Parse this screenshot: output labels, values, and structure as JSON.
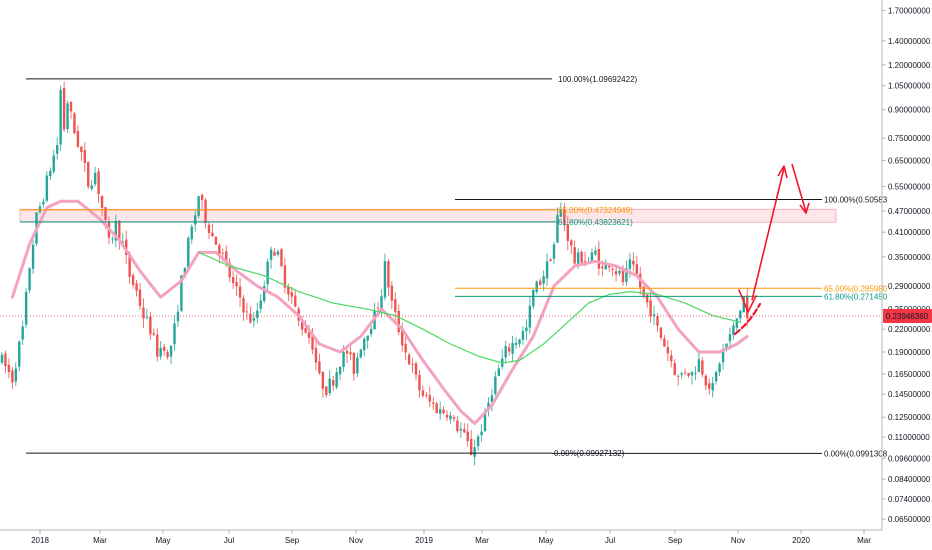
{
  "chart_data": {
    "type": "candlestick",
    "y_scale": "log",
    "ylim": [
      0.0606,
      1.82
    ],
    "y_ticks": [
      "1.70000000",
      "1.40000000",
      "1.20000000",
      "1.05000000",
      "0.90000000",
      "0.75000000",
      "0.65000000",
      "0.55000000",
      "0.47000000",
      "0.41000000",
      "0.35000000",
      "0.29000000",
      "0.25000000",
      "0.22000000",
      "0.19000000",
      "0.16500000",
      "0.14500000",
      "0.12500000",
      "0.11000000",
      "0.09600000",
      "0.08400000",
      "0.07400000",
      "0.06500000"
    ],
    "x_ticks": [
      "2018",
      "Mar",
      "May",
      "Jul",
      "Sep",
      "Nov",
      "2019",
      "Mar",
      "May",
      "Jul",
      "Sep",
      "Nov",
      "2020",
      "Mar"
    ],
    "current_price": {
      "value": 0.2394,
      "label": "0.23946360",
      "color": "#f23645"
    },
    "price_path": [
      [
        0,
        0.18
      ],
      [
        3,
        0.16
      ],
      [
        6,
        0.22
      ],
      [
        8,
        0.33
      ],
      [
        10,
        0.45
      ],
      [
        12,
        0.52
      ],
      [
        14,
        0.62
      ],
      [
        16,
        0.72
      ],
      [
        17,
        1.02
      ],
      [
        18,
        0.8
      ],
      [
        19,
        0.95
      ],
      [
        21,
        0.78
      ],
      [
        23,
        0.68
      ],
      [
        25,
        0.56
      ],
      [
        27,
        0.6
      ],
      [
        29,
        0.48
      ],
      [
        31,
        0.38
      ],
      [
        33,
        0.43
      ],
      [
        35,
        0.38
      ],
      [
        37,
        0.31
      ],
      [
        39,
        0.28
      ],
      [
        41,
        0.24
      ],
      [
        43,
        0.22
      ],
      [
        45,
        0.19
      ],
      [
        47,
        0.2
      ],
      [
        48,
        0.18
      ],
      [
        50,
        0.22
      ],
      [
        52,
        0.3
      ],
      [
        54,
        0.38
      ],
      [
        56,
        0.46
      ],
      [
        57,
        0.52
      ],
      [
        59,
        0.45
      ],
      [
        61,
        0.4
      ],
      [
        63,
        0.37
      ],
      [
        65,
        0.33
      ],
      [
        67,
        0.29
      ],
      [
        69,
        0.27
      ],
      [
        71,
        0.24
      ],
      [
        73,
        0.23
      ],
      [
        75,
        0.27
      ],
      [
        77,
        0.33
      ],
      [
        78,
        0.38
      ],
      [
        80,
        0.35
      ],
      [
        82,
        0.3
      ],
      [
        84,
        0.27
      ],
      [
        86,
        0.23
      ],
      [
        88,
        0.22
      ],
      [
        90,
        0.2
      ],
      [
        92,
        0.16
      ],
      [
        94,
        0.15
      ],
      [
        96,
        0.16
      ],
      [
        98,
        0.18
      ],
      [
        100,
        0.19
      ],
      [
        102,
        0.17
      ],
      [
        104,
        0.2
      ],
      [
        106,
        0.22
      ],
      [
        108,
        0.24
      ],
      [
        110,
        0.28
      ],
      [
        111,
        0.33
      ],
      [
        113,
        0.26
      ],
      [
        115,
        0.22
      ],
      [
        117,
        0.19
      ],
      [
        119,
        0.17
      ],
      [
        121,
        0.15
      ],
      [
        123,
        0.14
      ],
      [
        125,
        0.135
      ],
      [
        127,
        0.13
      ],
      [
        129,
        0.13
      ],
      [
        131,
        0.12
      ],
      [
        133,
        0.115
      ],
      [
        135,
        0.105
      ],
      [
        136,
        0.1
      ],
      [
        138,
        0.11
      ],
      [
        140,
        0.125
      ],
      [
        142,
        0.15
      ],
      [
        144,
        0.17
      ],
      [
        146,
        0.19
      ],
      [
        148,
        0.2
      ],
      [
        150,
        0.21
      ],
      [
        152,
        0.22
      ],
      [
        154,
        0.28
      ],
      [
        156,
        0.3
      ],
      [
        158,
        0.33
      ],
      [
        160,
        0.38
      ],
      [
        161,
        0.45
      ],
      [
        162,
        0.47
      ],
      [
        164,
        0.4
      ],
      [
        166,
        0.34
      ],
      [
        168,
        0.35
      ],
      [
        170,
        0.34
      ],
      [
        172,
        0.36
      ],
      [
        174,
        0.32
      ],
      [
        176,
        0.34
      ],
      [
        178,
        0.32
      ],
      [
        180,
        0.3
      ],
      [
        182,
        0.33
      ],
      [
        184,
        0.31
      ],
      [
        186,
        0.27
      ],
      [
        188,
        0.25
      ],
      [
        190,
        0.22
      ],
      [
        192,
        0.2
      ],
      [
        194,
        0.18
      ],
      [
        196,
        0.16
      ],
      [
        198,
        0.17
      ],
      [
        200,
        0.165
      ],
      [
        202,
        0.18
      ],
      [
        204,
        0.16
      ],
      [
        206,
        0.15
      ],
      [
        208,
        0.18
      ],
      [
        210,
        0.2
      ],
      [
        212,
        0.22
      ],
      [
        214,
        0.25
      ],
      [
        215,
        0.27
      ],
      [
        216,
        0.235
      ]
    ],
    "ema_pink": [
      [
        3,
        0.27
      ],
      [
        8,
        0.38
      ],
      [
        13,
        0.48
      ],
      [
        17,
        0.5
      ],
      [
        22,
        0.5
      ],
      [
        28,
        0.45
      ],
      [
        34,
        0.39
      ],
      [
        40,
        0.32
      ],
      [
        46,
        0.27
      ],
      [
        52,
        0.3
      ],
      [
        57,
        0.36
      ],
      [
        62,
        0.36
      ],
      [
        68,
        0.32
      ],
      [
        74,
        0.29
      ],
      [
        80,
        0.27
      ],
      [
        86,
        0.24
      ],
      [
        92,
        0.2
      ],
      [
        98,
        0.19
      ],
      [
        104,
        0.21
      ],
      [
        110,
        0.25
      ],
      [
        116,
        0.22
      ],
      [
        122,
        0.18
      ],
      [
        128,
        0.15
      ],
      [
        133,
        0.13
      ],
      [
        137,
        0.12
      ],
      [
        142,
        0.135
      ],
      [
        148,
        0.17
      ],
      [
        154,
        0.21
      ],
      [
        160,
        0.29
      ],
      [
        166,
        0.33
      ],
      [
        172,
        0.34
      ],
      [
        178,
        0.33
      ],
      [
        184,
        0.31
      ],
      [
        190,
        0.27
      ],
      [
        196,
        0.22
      ],
      [
        202,
        0.19
      ],
      [
        208,
        0.19
      ],
      [
        213,
        0.2
      ],
      [
        216,
        0.21
      ]
    ],
    "sma_green": [
      [
        57,
        0.36
      ],
      [
        66,
        0.33
      ],
      [
        76,
        0.31
      ],
      [
        86,
        0.28
      ],
      [
        96,
        0.26
      ],
      [
        106,
        0.25
      ],
      [
        114,
        0.24
      ],
      [
        122,
        0.22
      ],
      [
        130,
        0.2
      ],
      [
        138,
        0.185
      ],
      [
        145,
        0.177
      ],
      [
        150,
        0.18
      ],
      [
        157,
        0.2
      ],
      [
        164,
        0.23
      ],
      [
        170,
        0.26
      ],
      [
        176,
        0.275
      ],
      [
        182,
        0.28
      ],
      [
        190,
        0.275
      ],
      [
        198,
        0.26
      ],
      [
        206,
        0.24
      ],
      [
        214,
        0.23
      ]
    ],
    "fib_levels_1": [
      {
        "label": "100.00%(1.09692422)",
        "value": 1.0969,
        "color": "#131722"
      },
      {
        "label": "65.00%(0.47324949)",
        "value": 0.4732,
        "color": "#ff9800"
      },
      {
        "label": "61.80%(0.43823621)",
        "value": 0.4382,
        "color": "#089981"
      },
      {
        "label": "0.00%(0.09927132)",
        "value": 0.0993,
        "color": "#131722"
      }
    ],
    "fib_levels_2": [
      {
        "label": "100.00%(0.50583",
        "value": 0.5058,
        "color": "#131722"
      },
      {
        "label": "65.00%(0.285980",
        "value": 0.286,
        "color": "#ff9800"
      },
      {
        "label": "61.80%(0.271450",
        "value": 0.2715,
        "color": "#089981"
      },
      {
        "label": "0.00%(0.0991308",
        "value": 0.0991,
        "color": "#131722"
      }
    ],
    "resistance_zone": {
      "top": 0.475,
      "bottom": 0.437,
      "color": "#f8c8cf"
    },
    "projection_path": [
      [
        219,
        0.245
      ],
      [
        228,
        0.58
      ],
      [
        233,
        0.44
      ]
    ],
    "colors": {
      "up": "#26a69a",
      "down": "#ef5350",
      "ema": "#f3a3c0",
      "sma": "#4cd964",
      "projection": "#f0182f"
    }
  }
}
